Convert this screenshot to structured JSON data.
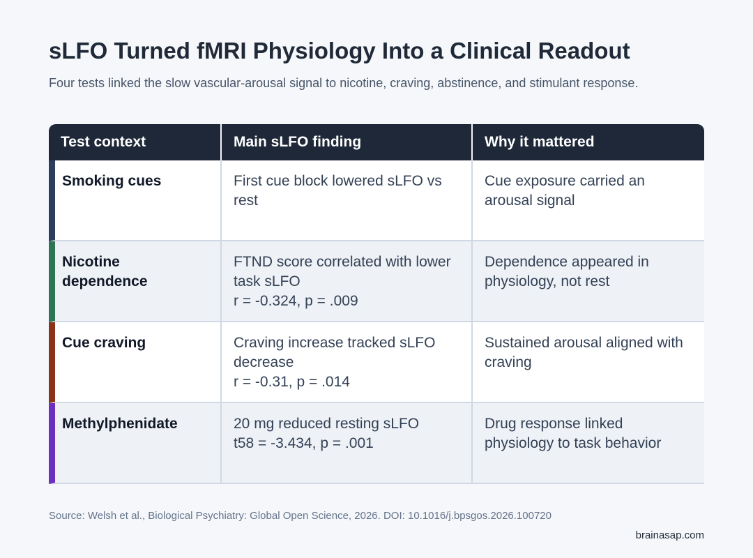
{
  "header": {
    "title": "sLFO Turned fMRI Physiology Into a Clinical Readout",
    "subtitle": "Four tests linked the slow vascular-arousal signal to nicotine, craving, abstinence, and stimulant response."
  },
  "table": {
    "columns": [
      "Test context",
      "Main sLFO finding",
      "Why it mattered"
    ],
    "rows": [
      {
        "context": "Smoking cues",
        "finding": "First cue block lowered sLFO vs rest",
        "why": "Cue exposure carried an arousal signal"
      },
      {
        "context": "Nicotine dependence",
        "finding": "FTND score correlated with lower task sLFO",
        "stat": "r = -0.324, p = .009",
        "why": "Dependence appeared in physiology, not rest"
      },
      {
        "context": "Cue craving",
        "finding": "Craving increase tracked sLFO decrease",
        "stat": "r = -0.31, p = .014",
        "why": "Sustained arousal aligned with craving"
      },
      {
        "context": "Methylphenidate",
        "finding": "20 mg reduced resting sLFO",
        "stat": "t58 = -3.434, p = .001",
        "why": "Drug response linked physiology to task behavior"
      }
    ]
  },
  "footer": {
    "source": "Source: Welsh et al., Biological Psychiatry: Global Open Science, 2026. DOI: 10.1016/j.bpsgos.2026.100720",
    "brand": "brainasap.com"
  }
}
